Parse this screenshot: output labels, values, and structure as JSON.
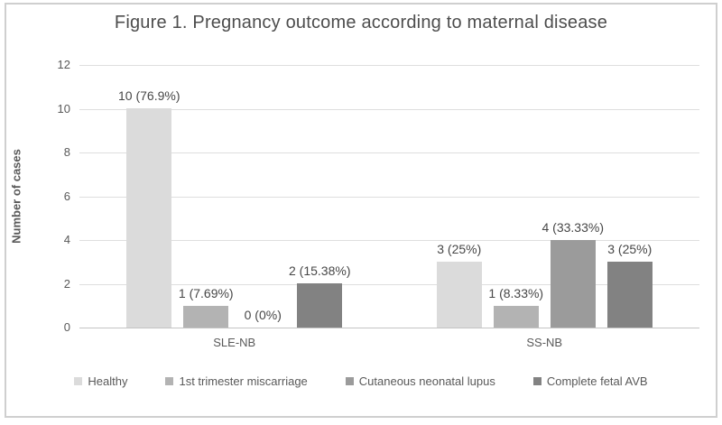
{
  "title": "Figure 1. Pregnancy outcome according to maternal disease",
  "chart_data": {
    "type": "bar",
    "title": "Figure 1. Pregnancy outcome according to maternal disease",
    "categories": [
      "SLE-NB",
      "SS-NB"
    ],
    "series": [
      {
        "name": "Healthy",
        "color": "#dbdbdb",
        "values": [
          10,
          3
        ],
        "labels": [
          "10 (76.9%)",
          "3 (25%)"
        ]
      },
      {
        "name": "1st trimester miscarriage",
        "color": "#b3b3b3",
        "values": [
          1,
          1
        ],
        "labels": [
          "1 (7.69%)",
          "1 (8.33%)"
        ]
      },
      {
        "name": "Cutaneous neonatal lupus",
        "color": "#9b9b9b",
        "values": [
          0,
          4
        ],
        "labels": [
          "0 (0%)",
          "4 (33.33%)"
        ]
      },
      {
        "name": "Complete fetal AVB",
        "color": "#828282",
        "values": [
          2,
          3
        ],
        "labels": [
          "2 (15.38%)",
          "3 (25%)"
        ]
      }
    ],
    "xlabel": "",
    "ylabel": "Number of cases",
    "ylim": [
      0,
      12
    ],
    "yticks": [
      0,
      2,
      4,
      6,
      8,
      10,
      12
    ],
    "grid": true,
    "legend_position": "bottom"
  }
}
